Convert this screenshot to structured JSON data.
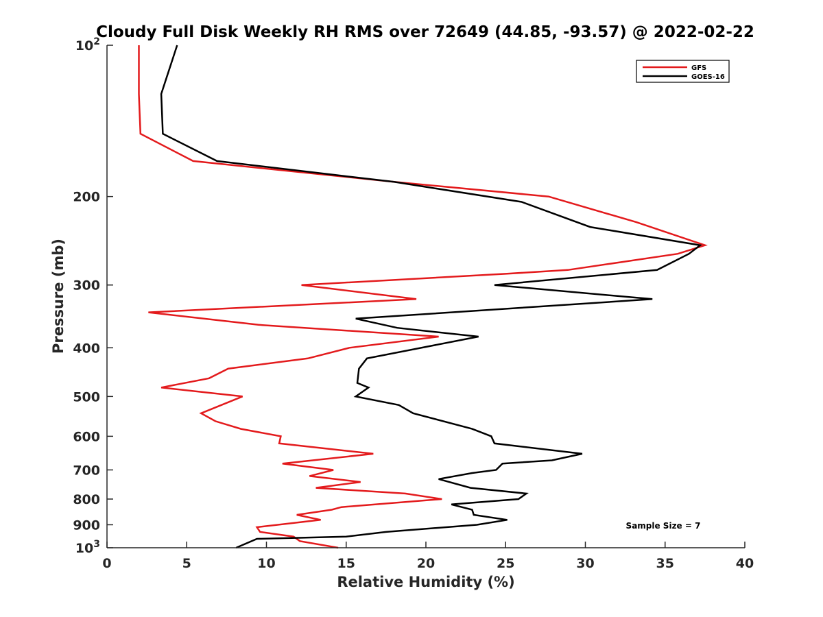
{
  "chart_data": {
    "type": "line",
    "title": "Cloudy Full Disk Weekly RH RMS over 72649 (44.85, -93.57) @ 2022-02-22",
    "xlabel": "Relative Humidity (%)",
    "ylabel": "Pressure (mb)",
    "xlim": [
      0,
      40
    ],
    "ylim": [
      100,
      1000
    ],
    "y_scale": "log",
    "y_reversed": true,
    "xticks": [
      0,
      5,
      10,
      15,
      20,
      25,
      30,
      35,
      40
    ],
    "yticks": [
      {
        "value": 100,
        "base": "10",
        "exp": "2"
      },
      {
        "value": 200,
        "label": "200"
      },
      {
        "value": 300,
        "label": "300"
      },
      {
        "value": 400,
        "label": "400"
      },
      {
        "value": 500,
        "label": "500"
      },
      {
        "value": 600,
        "label": "600"
      },
      {
        "value": 700,
        "label": "700"
      },
      {
        "value": 800,
        "label": "800"
      },
      {
        "value": 900,
        "label": "900"
      },
      {
        "value": 1000,
        "base": "10",
        "exp": "3"
      }
    ],
    "grid": false,
    "legend_position": "top-right",
    "annotation": "Sample Size = 7",
    "series": [
      {
        "name": "GFS",
        "color": "#e31a1c",
        "points": [
          [
            2.0,
            100
          ],
          [
            2.0,
            125
          ],
          [
            2.1,
            150
          ],
          [
            5.4,
            170
          ],
          [
            18.0,
            187
          ],
          [
            27.7,
            200
          ],
          [
            33.2,
            225
          ],
          [
            37.5,
            250
          ],
          [
            35.8,
            260
          ],
          [
            28.9,
            280
          ],
          [
            25.0,
            285
          ],
          [
            12.2,
            300
          ],
          [
            19.4,
            320
          ],
          [
            2.6,
            340
          ],
          [
            9.5,
            360
          ],
          [
            20.8,
            380
          ],
          [
            15.2,
            400
          ],
          [
            12.6,
            420
          ],
          [
            7.6,
            440
          ],
          [
            6.4,
            460
          ],
          [
            3.4,
            480
          ],
          [
            8.5,
            500
          ],
          [
            5.9,
            540
          ],
          [
            6.8,
            560
          ],
          [
            8.4,
            580
          ],
          [
            10.9,
            600
          ],
          [
            10.8,
            620
          ],
          [
            16.7,
            650
          ],
          [
            11.0,
            680
          ],
          [
            14.2,
            700
          ],
          [
            12.7,
            720
          ],
          [
            15.9,
            740
          ],
          [
            13.1,
            760
          ],
          [
            18.7,
            780
          ],
          [
            21.0,
            800
          ],
          [
            14.7,
            830
          ],
          [
            14.1,
            840
          ],
          [
            11.9,
            860
          ],
          [
            13.4,
            880
          ],
          [
            9.4,
            910
          ],
          [
            9.6,
            930
          ],
          [
            11.7,
            950
          ],
          [
            12.1,
            970
          ],
          [
            14.5,
            1000
          ]
        ]
      },
      {
        "name": "GOES-16",
        "color": "#000000",
        "points": [
          [
            4.4,
            100
          ],
          [
            3.4,
            125
          ],
          [
            3.5,
            150
          ],
          [
            6.9,
            170
          ],
          [
            18.0,
            187
          ],
          [
            26.0,
            205
          ],
          [
            30.3,
            230
          ],
          [
            37.2,
            250
          ],
          [
            36.5,
            260
          ],
          [
            34.5,
            280
          ],
          [
            24.3,
            300
          ],
          [
            34.2,
            320
          ],
          [
            15.6,
            350
          ],
          [
            18.2,
            365
          ],
          [
            23.3,
            380
          ],
          [
            16.3,
            420
          ],
          [
            15.8,
            440
          ],
          [
            15.7,
            470
          ],
          [
            16.4,
            480
          ],
          [
            15.6,
            500
          ],
          [
            18.3,
            520
          ],
          [
            19.2,
            540
          ],
          [
            22.9,
            580
          ],
          [
            24.1,
            600
          ],
          [
            24.3,
            620
          ],
          [
            29.8,
            650
          ],
          [
            27.9,
            670
          ],
          [
            24.8,
            680
          ],
          [
            24.4,
            700
          ],
          [
            22.9,
            710
          ],
          [
            20.8,
            730
          ],
          [
            22.8,
            760
          ],
          [
            26.3,
            780
          ],
          [
            25.8,
            800
          ],
          [
            21.6,
            820
          ],
          [
            22.9,
            840
          ],
          [
            23.0,
            860
          ],
          [
            25.1,
            880
          ],
          [
            23.2,
            900
          ],
          [
            17.5,
            930
          ],
          [
            15.0,
            950
          ],
          [
            9.4,
            960
          ],
          [
            8.1,
            1000
          ]
        ]
      }
    ]
  }
}
